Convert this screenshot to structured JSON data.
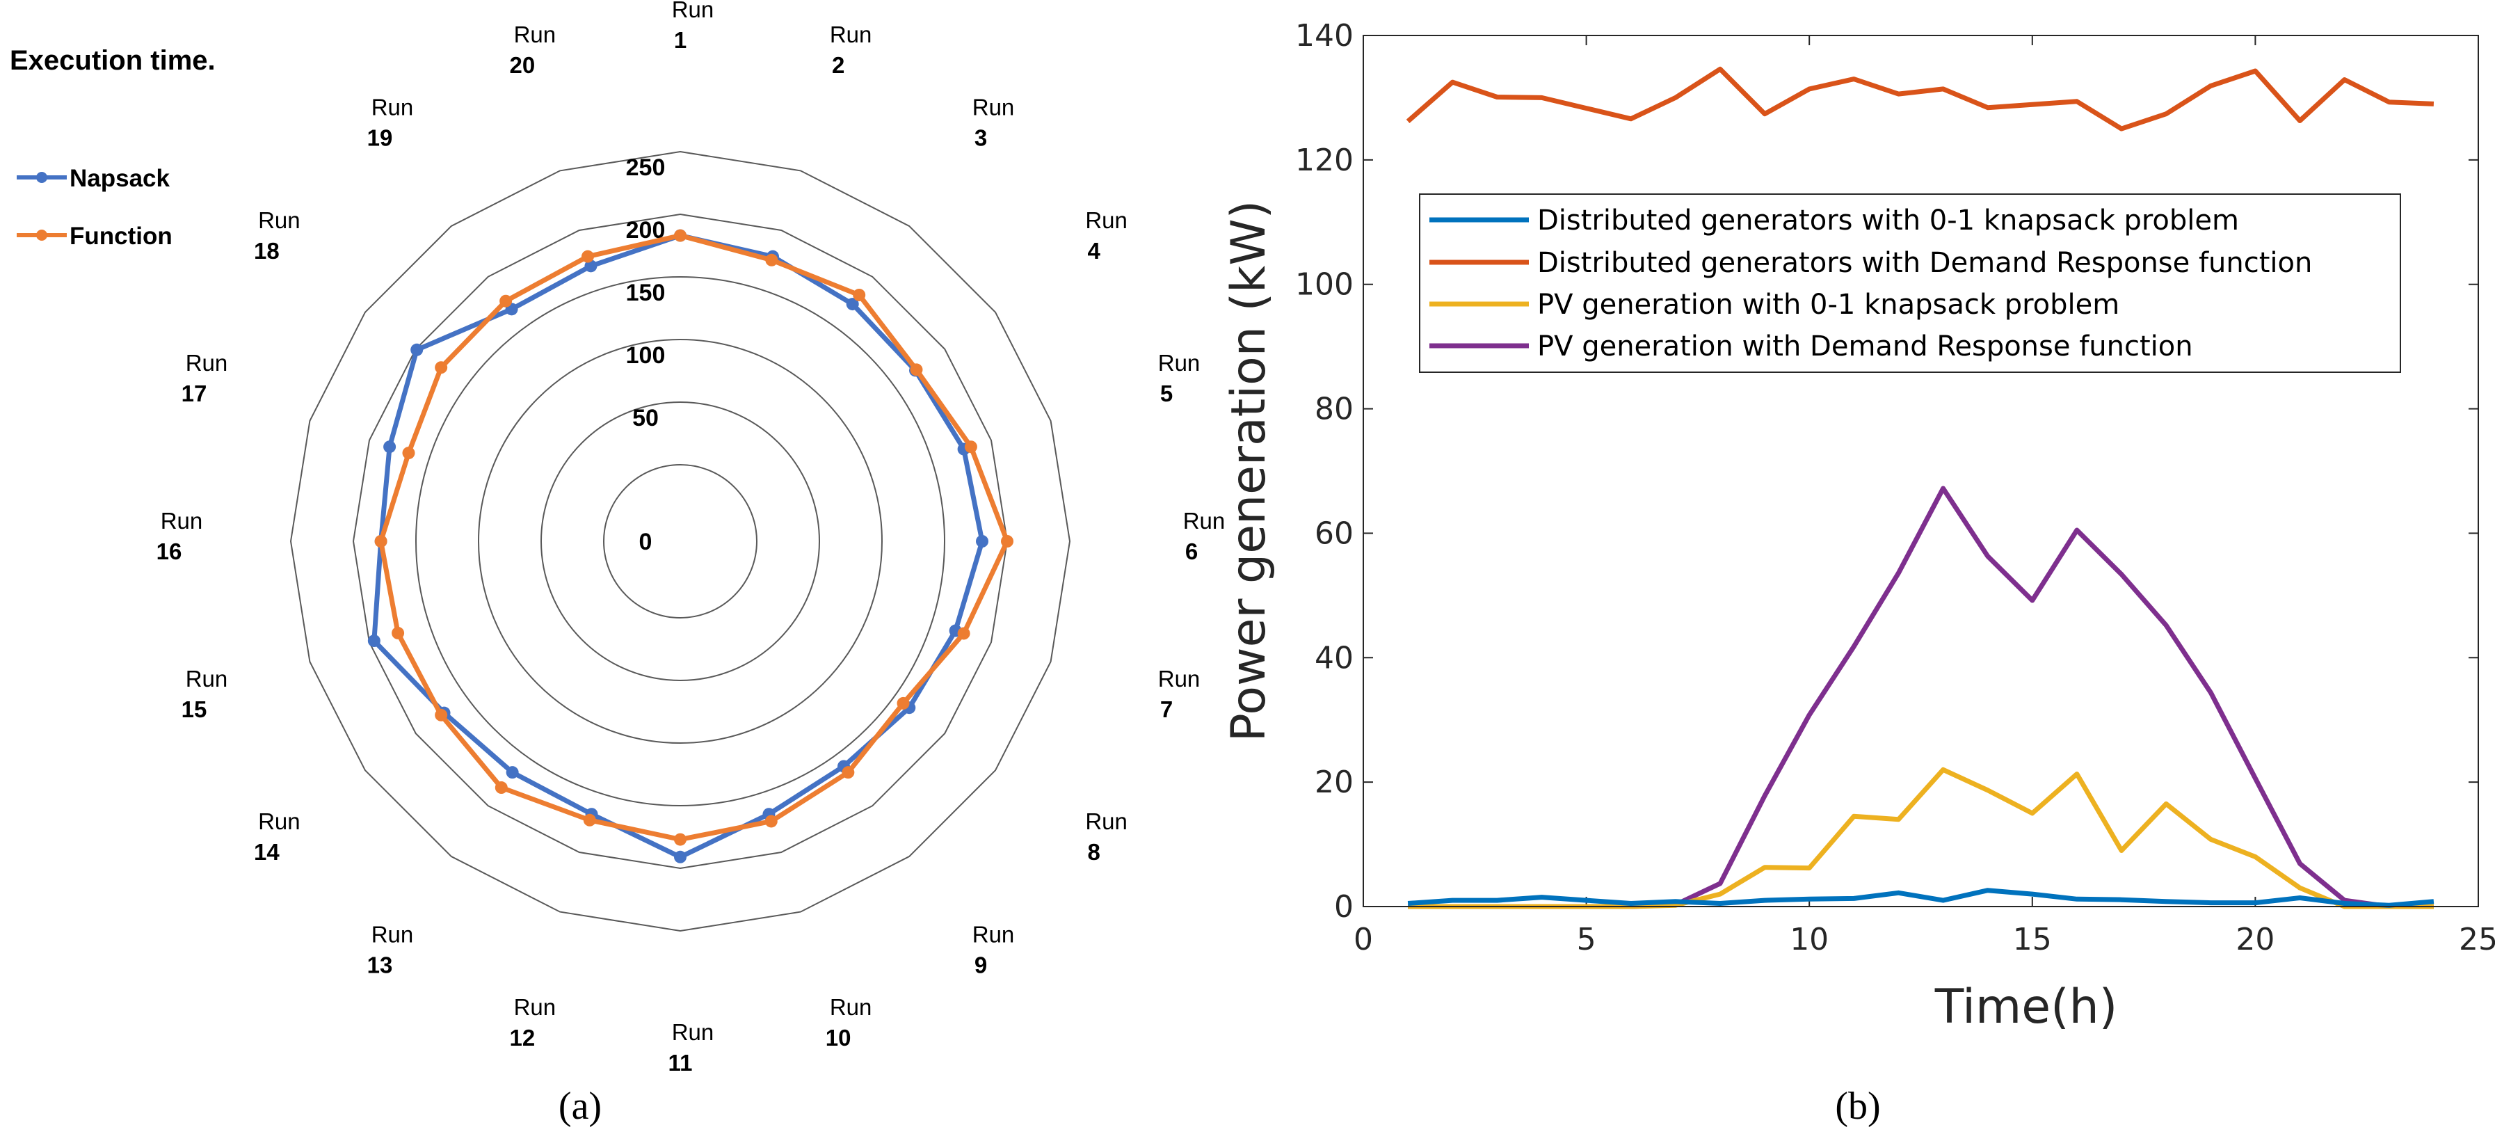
{
  "chart_data": [
    {
      "type": "radar",
      "panel_label": "(a)",
      "title": "Execution time.",
      "rlim": [
        0,
        250
      ],
      "r_ticks": [
        "0",
        "50",
        "100",
        "150",
        "200",
        "250"
      ],
      "axis_labels": [
        {
          "word": "Run",
          "num": "1"
        },
        {
          "word": "Run",
          "num": "2"
        },
        {
          "word": "Run",
          "num": "3"
        },
        {
          "word": "Run",
          "num": "4"
        },
        {
          "word": "Run",
          "num": "5"
        },
        {
          "word": "Run",
          "num": "6"
        },
        {
          "word": "Run",
          "num": "7"
        },
        {
          "word": "Run",
          "num": "8"
        },
        {
          "word": "Run",
          "num": "9"
        },
        {
          "word": "Run",
          "num": "10"
        },
        {
          "word": "Run",
          "num": "11"
        },
        {
          "word": "Run",
          "num": "12"
        },
        {
          "word": "Run",
          "num": "13"
        },
        {
          "word": "Run",
          "num": "14"
        },
        {
          "word": "Run",
          "num": "15"
        },
        {
          "word": "Run",
          "num": "16"
        },
        {
          "word": "Run",
          "num": "17"
        },
        {
          "word": "Run",
          "num": "18"
        },
        {
          "word": "Run",
          "num": "19"
        },
        {
          "word": "Run",
          "num": "20"
        }
      ],
      "series": [
        {
          "name": "Napsack",
          "color": "#4472C4",
          "values": [
            183,
            178,
            173,
            171,
            177,
            180,
            170,
            165,
            161,
            168,
            191,
            168,
            167,
            172,
            196,
            178,
            183,
            199,
            168,
            170
          ]
        },
        {
          "name": "Function",
          "color": "#ED7D31",
          "values": [
            183,
            175,
            182,
            172,
            183,
            200,
            177,
            159,
            167,
            174,
            177,
            173,
            182,
            175,
            176,
            178,
            167,
            175,
            176,
            178
          ]
        }
      ],
      "legend_position": "top-left"
    },
    {
      "type": "line",
      "panel_label": "(b)",
      "xlabel": "Time(h)",
      "ylabel": "Power generation (kW)",
      "xlim": [
        0,
        25
      ],
      "ylim": [
        0,
        140
      ],
      "x_ticks": [
        "0",
        "5",
        "10",
        "15",
        "20",
        "25"
      ],
      "y_ticks": [
        "0",
        "20",
        "40",
        "60",
        "80",
        "100",
        "120",
        "140"
      ],
      "x": [
        1,
        2,
        3,
        4,
        5,
        6,
        7,
        8,
        9,
        10,
        11,
        12,
        13,
        14,
        15,
        16,
        17,
        18,
        19,
        20,
        21,
        22,
        23,
        24
      ],
      "series": [
        {
          "name": "Distributed generators with 0-1 knapsack problem",
          "color": "#0072BD",
          "values": [
            0.5,
            1,
            1,
            1.5,
            1,
            0.5,
            0.8,
            0.5,
            1,
            1.2,
            1.3,
            2.2,
            1,
            2.6,
            2,
            1.2,
            1.1,
            0.8,
            0.6,
            0.6,
            1.4,
            0.5,
            0.2,
            0.8
          ]
        },
        {
          "name": "Distributed generators with Demand Response function",
          "color": "#D95319",
          "values": [
            126.2,
            132.5,
            130.1,
            130,
            128.3,
            126.6,
            130,
            134.6,
            127.4,
            131.4,
            133,
            130.6,
            131.4,
            128.4,
            128.9,
            129.4,
            125,
            127.4,
            131.9,
            134.3,
            126.3,
            132.9,
            129.3,
            129
          ]
        },
        {
          "name": "PV generation with 0-1 knapsack problem",
          "color": "#EDB120",
          "values": [
            0,
            0,
            0,
            0,
            0,
            0,
            0.2,
            2,
            6.3,
            6.2,
            14.5,
            14,
            22,
            18.7,
            15,
            21.3,
            9,
            16.5,
            10.8,
            8,
            3,
            0,
            0,
            0
          ]
        },
        {
          "name": "PV generation with Demand Response function",
          "color": "#7E2F8E",
          "values": [
            0,
            0,
            0,
            0,
            0,
            0,
            0.3,
            3.7,
            17.8,
            30.8,
            41.8,
            53.6,
            67.2,
            56.3,
            49.2,
            60.5,
            53.4,
            45.2,
            34.4,
            20.6,
            6.9,
            1,
            0,
            0
          ]
        }
      ],
      "legend_position": "top-right"
    }
  ]
}
